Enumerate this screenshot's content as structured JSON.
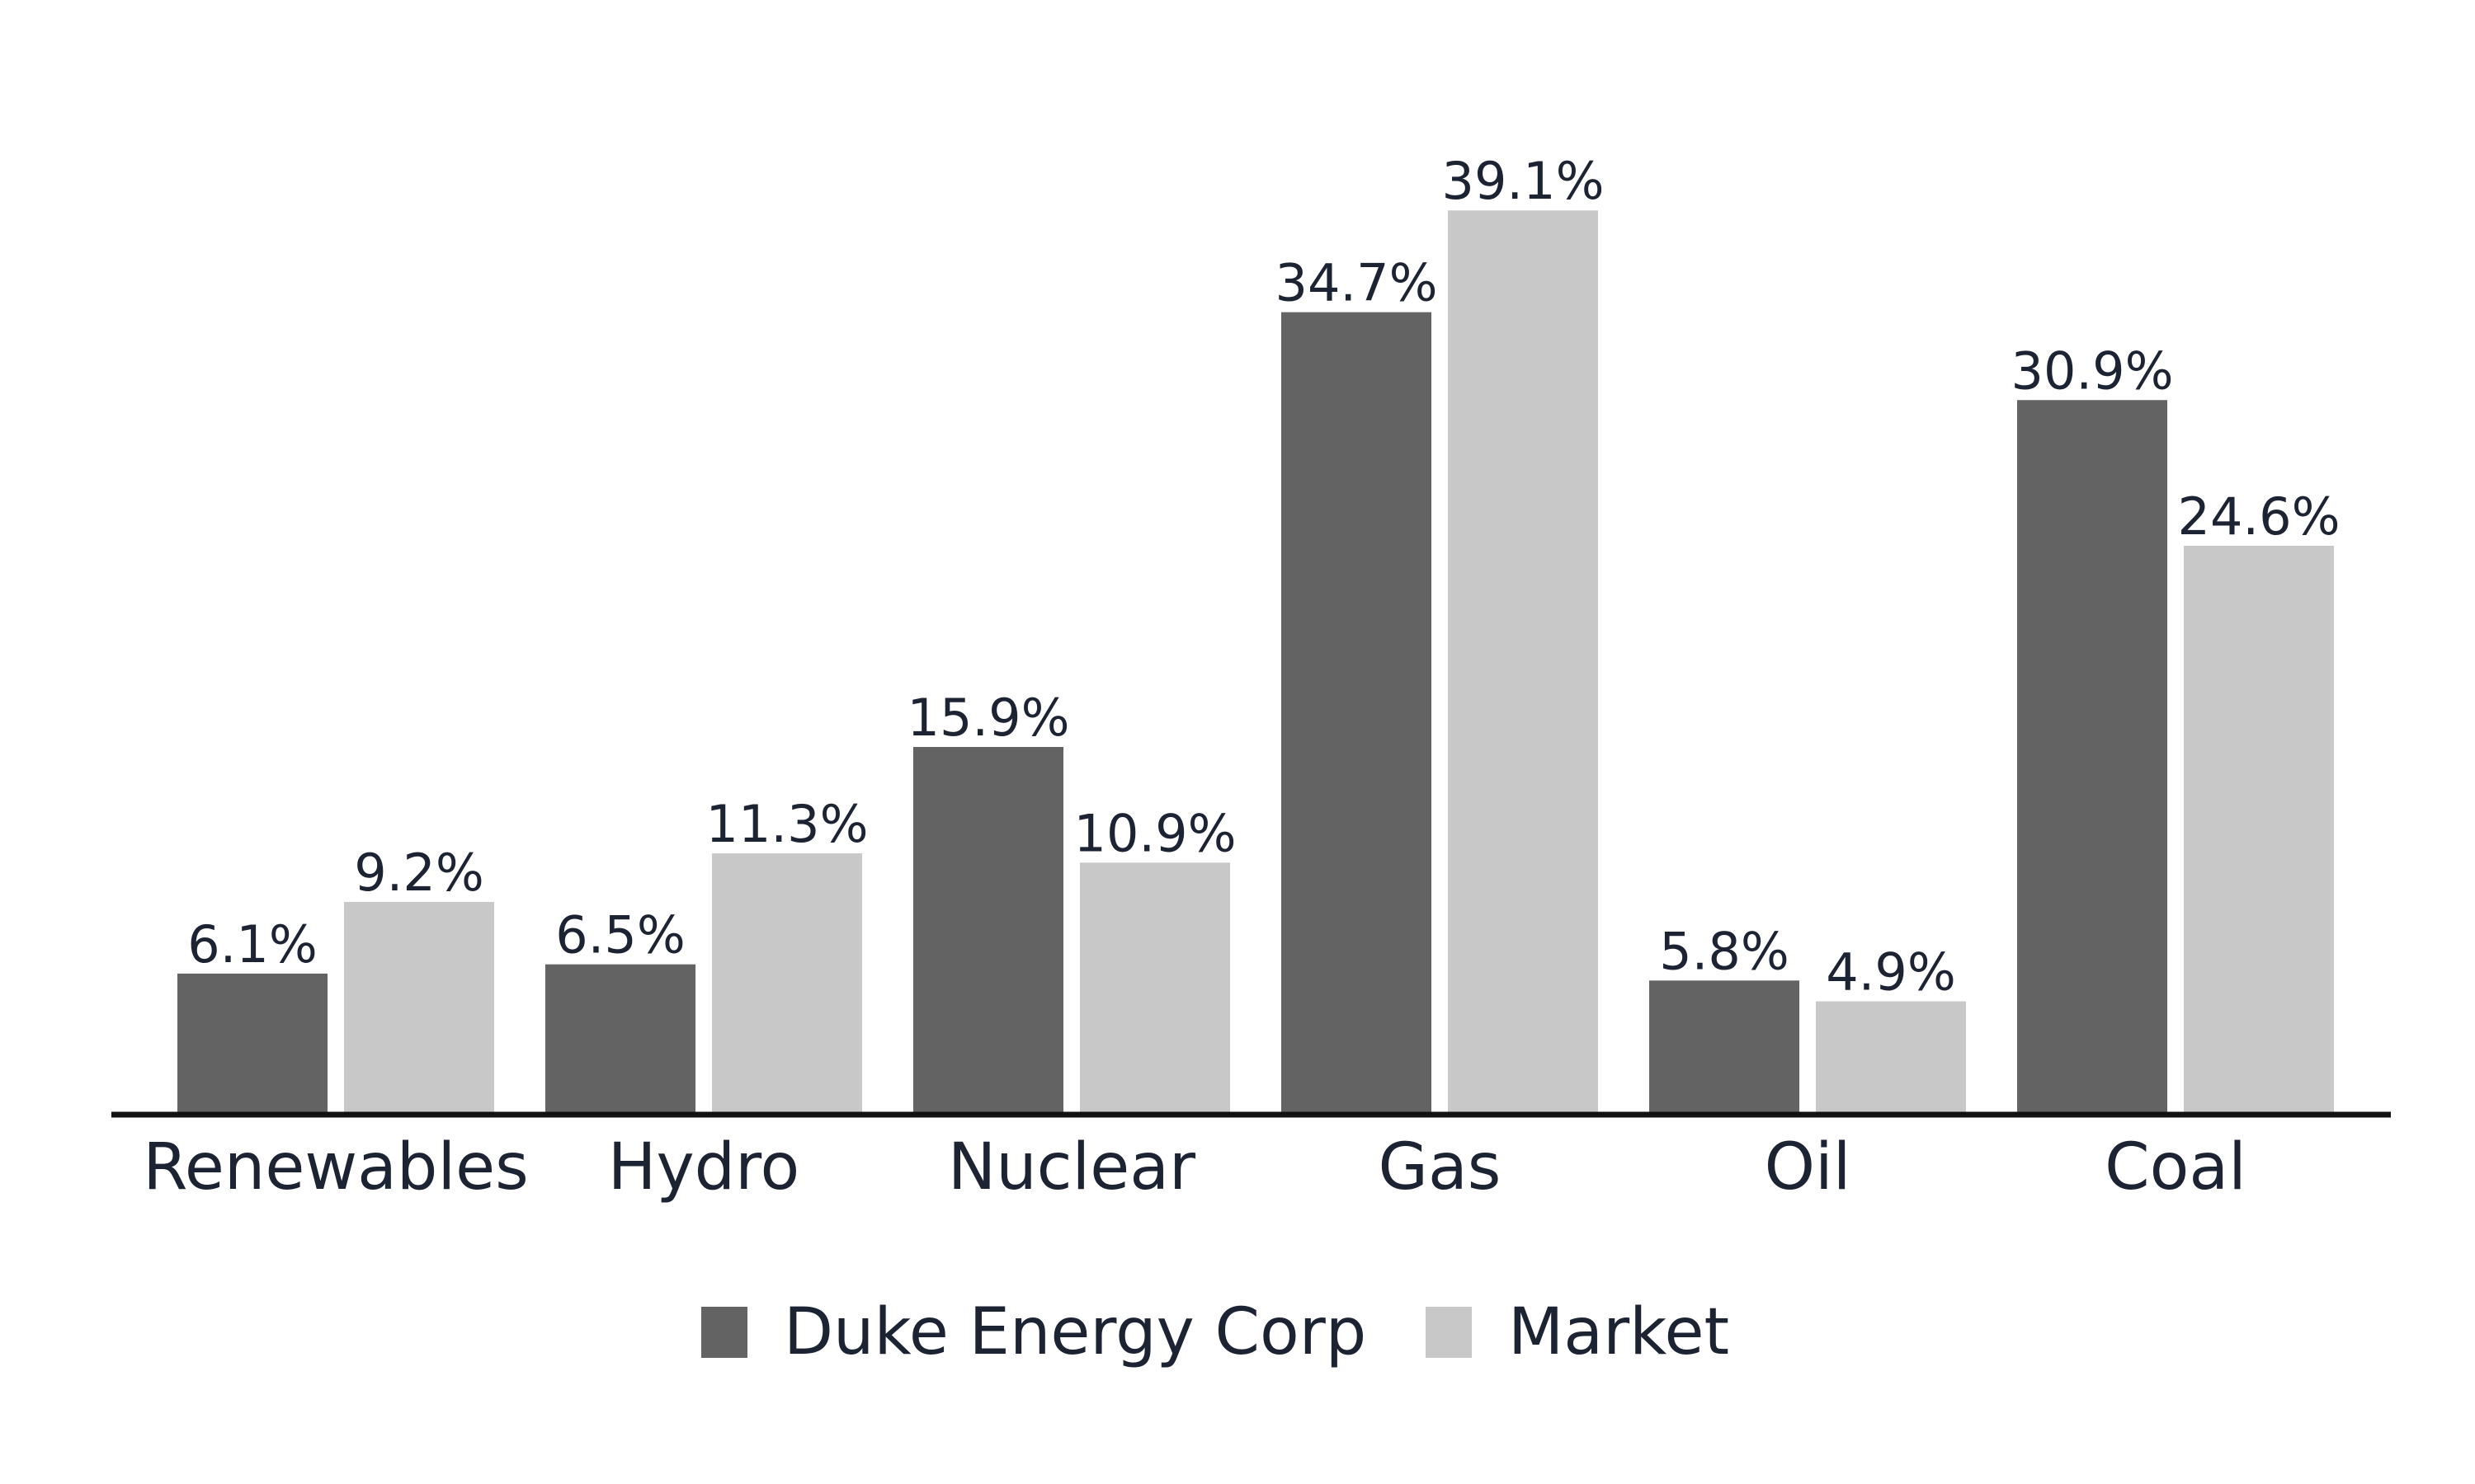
{
  "chart_data": {
    "type": "bar",
    "categories": [
      "Renewables",
      "Hydro",
      "Nuclear",
      "Gas",
      "Oil",
      "Coal"
    ],
    "series": [
      {
        "name": "Duke Energy Corp",
        "color": "#636363",
        "values": [
          6.1,
          6.5,
          15.9,
          34.7,
          5.8,
          30.9
        ]
      },
      {
        "name": "Market",
        "color": "#c8c8c8",
        "values": [
          9.2,
          11.3,
          10.9,
          39.1,
          4.9,
          24.6
        ]
      }
    ],
    "value_suffix": "%",
    "ylim": [
      0,
      40
    ],
    "grid": false,
    "legend_position": "bottom-center",
    "axis_color": "#111111"
  }
}
